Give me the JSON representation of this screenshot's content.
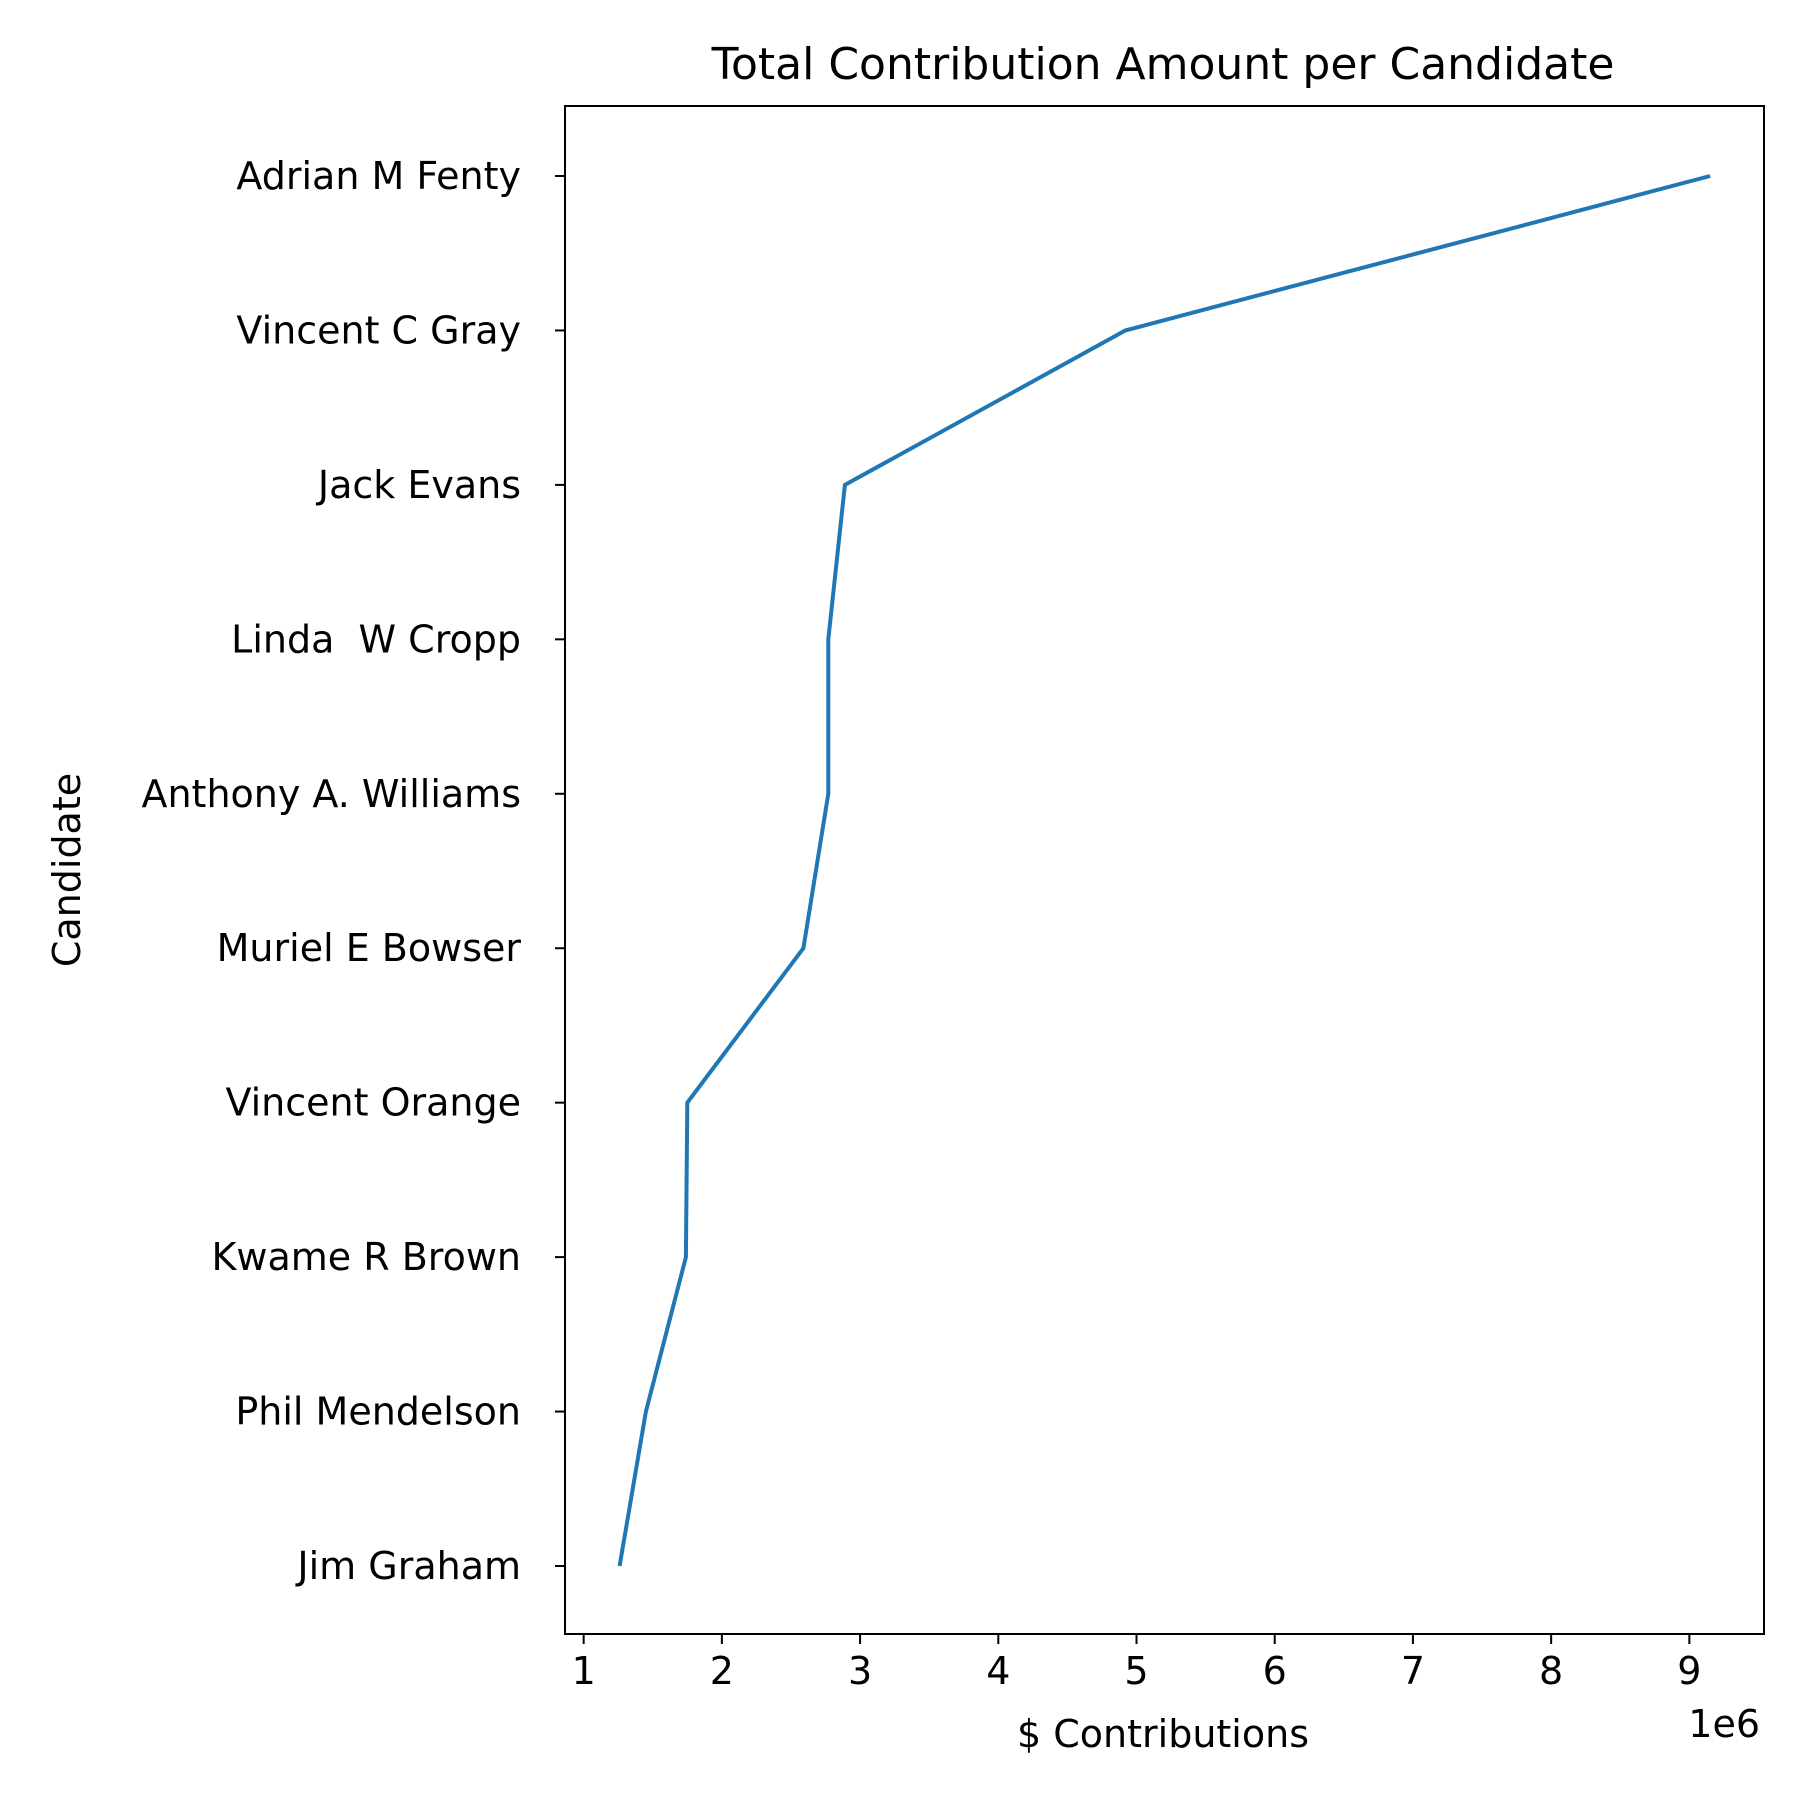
{
  "chart_data": {
    "type": "line",
    "title": "Total Contribution Amount per Candidate",
    "xlabel": "$ Contributions",
    "ylabel": "Candidate",
    "x_offset_label": "1e6",
    "x_scale": 1000000,
    "xlim": [
      0.865,
      9.54
    ],
    "x_ticks": [
      1,
      2,
      3,
      4,
      5,
      6,
      7,
      8,
      9
    ],
    "grid": false,
    "legend": "none",
    "line_color": "#1f77b4",
    "categories": [
      "Jim Graham",
      "Phil Mendelson",
      "Kwame R Brown",
      "Vincent Orange",
      "Muriel E Bowser",
      "Anthony A. Williams",
      "Linda  W Cropp",
      "Jack Evans",
      "Vincent C Gray",
      "Adrian M Fenty"
    ],
    "values": [
      1260000,
      1450000,
      1740000,
      1750000,
      2590000,
      2770000,
      2770000,
      2890000,
      4920000,
      9150000
    ]
  }
}
